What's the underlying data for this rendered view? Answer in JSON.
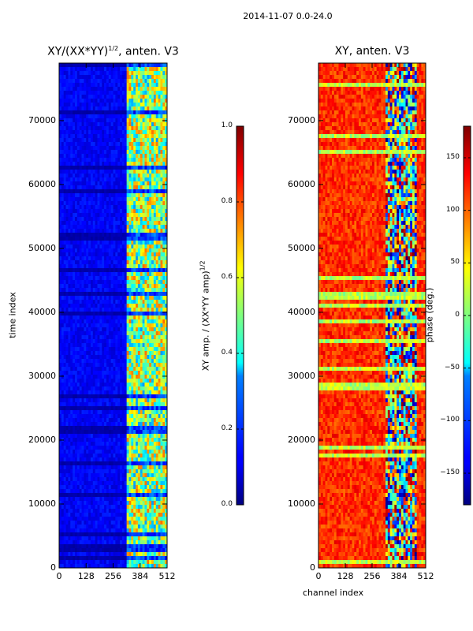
{
  "figure": {
    "suptitle": "2014-11-07 0.0-24.0"
  },
  "chart_data": [
    {
      "type": "heatmap",
      "title": "XY/(XX*YY)^{1/2}, anten. V3",
      "title_main": "XY/(XX*YY)",
      "title_sup": "1/2",
      "title_tail": ", anten. V3",
      "xlabel": "",
      "ylabel": "time index",
      "xlim": [
        0,
        512
      ],
      "ylim": [
        0,
        79000
      ],
      "xticks": [
        "0",
        "128",
        "256",
        "384",
        "512"
      ],
      "yticks": [
        "0",
        "10000",
        "20000",
        "30000",
        "40000",
        "50000",
        "60000",
        "70000"
      ],
      "colormap": "jet",
      "colorbar": {
        "label": "XY amp. / (XX*YY amp)^{1/2}",
        "label_main": "XY amp. / (XX*YY amp)",
        "label_sup": "1/2",
        "range": [
          0.0,
          1.0
        ],
        "ticks": [
          "0.0",
          "0.2",
          "0.4",
          "0.6",
          "0.8",
          "1.0"
        ]
      },
      "description_values": {
        "background_level": 0.12,
        "high_band_channels": [
          320,
          512
        ],
        "high_band_level": 0.55
      }
    },
    {
      "type": "heatmap",
      "title": "XY, anten. V3",
      "xlabel": "channel index",
      "ylabel": "",
      "xlim": [
        0,
        512
      ],
      "ylim": [
        0,
        79000
      ],
      "xticks": [
        "0",
        "128",
        "256",
        "384",
        "512"
      ],
      "yticks": [
        "0",
        "10000",
        "20000",
        "30000",
        "40000",
        "50000",
        "60000",
        "70000"
      ],
      "colormap": "jet",
      "colorbar": {
        "label": "phase (deg.)",
        "range": [
          -180,
          180
        ],
        "ticks": [
          "−150",
          "−100",
          "−50",
          "0",
          "50",
          "100",
          "150"
        ]
      },
      "description_values": {
        "background_level_deg": 120,
        "disturbed_channels": [
          320,
          460
        ]
      }
    }
  ]
}
